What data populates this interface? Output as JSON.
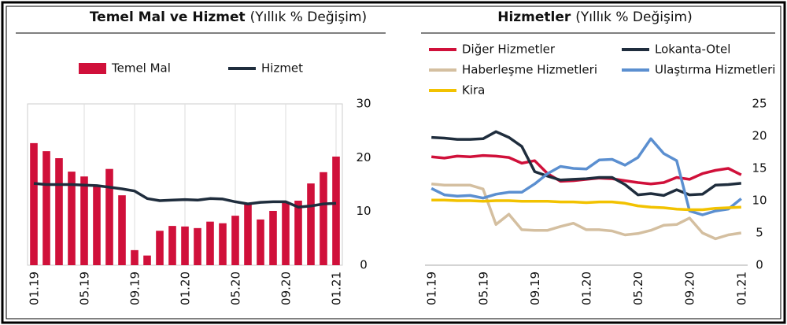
{
  "chart_data": [
    {
      "type": "bar",
      "title": "Temel Mal ve Hizmet",
      "subtitle": "(Yıllık % Değişim)",
      "categories": [
        "01.19",
        null,
        null,
        null,
        "05.19",
        null,
        null,
        null,
        "09.19",
        null,
        null,
        null,
        "01.20",
        null,
        null,
        null,
        "05.20",
        null,
        null,
        null,
        "09.20",
        null,
        null,
        null,
        "01.21"
      ],
      "series": [
        {
          "name": "Temel Mal",
          "type": "bar",
          "color": "#d0103a",
          "values": [
            22.7,
            21.2,
            19.9,
            17.4,
            16.5,
            14.8,
            17.9,
            13.0,
            2.8,
            1.8,
            6.4,
            7.3,
            7.2,
            6.9,
            8.1,
            7.8,
            9.2,
            11.6,
            8.5,
            10.1,
            11.6,
            12.0,
            15.2,
            17.3,
            20.2
          ]
        },
        {
          "name": "Hizmet",
          "type": "line",
          "color": "#1f2d3d",
          "values": [
            15.2,
            15.0,
            15.0,
            15.0,
            14.9,
            14.8,
            14.5,
            14.2,
            13.8,
            12.4,
            12.0,
            12.1,
            12.2,
            12.1,
            12.4,
            12.3,
            11.8,
            11.4,
            11.7,
            11.8,
            11.8,
            10.8,
            11.0,
            11.4,
            11.5
          ]
        }
      ],
      "ylim": [
        0,
        30
      ],
      "yticks": [
        0,
        10,
        20,
        30
      ]
    },
    {
      "type": "line",
      "title": "Hizmetler",
      "subtitle": "(Yıllık % Değişim)",
      "categories": [
        "01.19",
        null,
        null,
        null,
        "05.19",
        null,
        null,
        null,
        "09.19",
        null,
        null,
        null,
        "01.20",
        null,
        null,
        null,
        "05.20",
        null,
        null,
        null,
        "09.20",
        null,
        null,
        null,
        "01.21"
      ],
      "series": [
        {
          "name": "Diğer Hizmetler",
          "type": "line",
          "color": "#d0103a",
          "values": [
            16.8,
            16.6,
            16.9,
            16.8,
            17.0,
            16.9,
            16.7,
            15.8,
            16.2,
            14.2,
            13.0,
            13.1,
            13.3,
            13.5,
            13.4,
            13.1,
            12.8,
            12.6,
            12.8,
            13.6,
            13.3,
            14.2,
            14.7,
            15.0,
            14.0
          ]
        },
        {
          "name": "Lokanta-Otel",
          "type": "line",
          "color": "#1f2d3d",
          "values": [
            19.8,
            19.7,
            19.5,
            19.5,
            19.6,
            20.7,
            19.8,
            18.4,
            14.5,
            13.8,
            13.2,
            13.3,
            13.4,
            13.6,
            13.6,
            12.5,
            10.9,
            11.1,
            10.8,
            11.7,
            10.9,
            11.0,
            12.4,
            12.5,
            12.7
          ]
        },
        {
          "name": "Haberleşme Hizmetleri",
          "type": "line",
          "color": "#d4bfa0",
          "values": [
            12.6,
            12.4,
            12.4,
            12.4,
            11.8,
            6.3,
            7.9,
            5.5,
            5.4,
            5.4,
            6.0,
            6.5,
            5.5,
            5.5,
            5.3,
            4.7,
            4.9,
            5.4,
            6.2,
            6.3,
            7.3,
            5.0,
            4.1,
            4.7,
            5.0
          ]
        },
        {
          "name": "Ulaştırma Hizmetleri",
          "type": "line",
          "color": "#5b8fd0",
          "values": [
            11.9,
            10.9,
            10.7,
            10.8,
            10.4,
            11.0,
            11.3,
            11.3,
            12.6,
            14.2,
            15.3,
            15.0,
            14.9,
            16.3,
            16.4,
            15.5,
            16.7,
            19.6,
            17.3,
            16.2,
            8.4,
            7.8,
            8.4,
            8.7,
            10.3
          ]
        },
        {
          "name": "Kira",
          "type": "line",
          "color": "#f2c200",
          "values": [
            10.1,
            10.1,
            10.0,
            10.0,
            9.9,
            10.0,
            10.0,
            9.9,
            9.9,
            9.9,
            9.8,
            9.8,
            9.7,
            9.8,
            9.8,
            9.6,
            9.2,
            9.0,
            8.9,
            8.7,
            8.6,
            8.6,
            8.8,
            8.9,
            9.0
          ]
        }
      ],
      "ylim": [
        0,
        25
      ],
      "yticks": [
        0,
        5,
        10,
        15,
        20,
        25
      ]
    }
  ]
}
